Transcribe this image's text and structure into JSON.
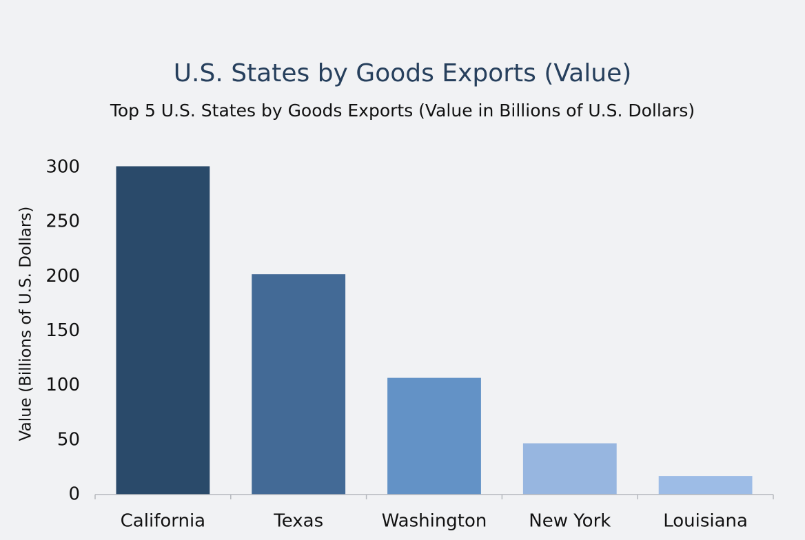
{
  "chart_data": {
    "type": "bar",
    "title": "U.S. States by Goods Exports (Value)",
    "subtitle": "Top 5 U.S. States by Goods Exports (Value in Billions of U.S. Dollars)",
    "y_label": "Value (Billions of U.S. Dollars)",
    "categories": [
      "California",
      "Texas",
      "Washington",
      "New York",
      "Louisiana"
    ],
    "values": [
      301,
      202,
      107,
      47,
      17
    ],
    "colors": [
      "#2a4a6a",
      "#436a96",
      "#6392c6",
      "#97b6e0",
      "#9dbce6"
    ],
    "ylim": [
      0,
      300
    ],
    "yticks": [
      0,
      50,
      100,
      150,
      200,
      250,
      300
    ],
    "grid": false
  }
}
